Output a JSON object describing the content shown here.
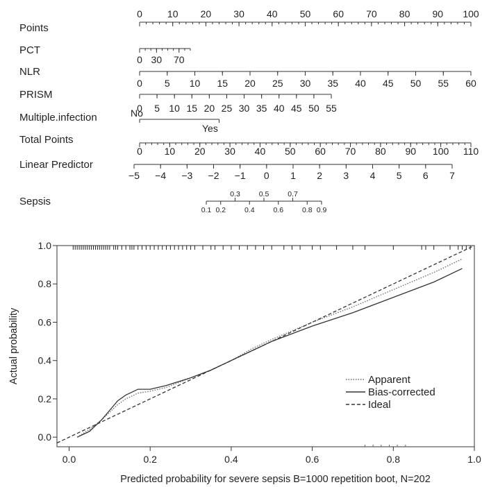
{
  "chart_data": [
    {
      "type": "nomogram",
      "rows": [
        {
          "name": "Points",
          "label": "Points",
          "min": 0,
          "max": 100,
          "labels": [
            "0",
            "10",
            "20",
            "30",
            "40",
            "50",
            "60",
            "70",
            "80",
            "90",
            "100"
          ],
          "label_values": [
            0,
            10,
            20,
            30,
            40,
            50,
            60,
            70,
            80,
            90,
            100
          ],
          "minor_step": 2
        },
        {
          "name": "PCT",
          "label": "PCT",
          "min": 0,
          "max": 90,
          "labels": [
            "0",
            "30",
            "70"
          ],
          "label_values": [
            0,
            30,
            70
          ],
          "minor_step": 10
        },
        {
          "name": "NLR",
          "label": "NLR",
          "min": 0,
          "max": 60,
          "labels": [
            "0",
            "5",
            "10",
            "15",
            "20",
            "25",
            "30",
            "35",
            "40",
            "45",
            "50",
            "55",
            "60"
          ],
          "label_values": [
            0,
            5,
            10,
            15,
            20,
            25,
            30,
            35,
            40,
            45,
            50,
            55,
            60
          ],
          "minor_step": 5
        },
        {
          "name": "PRISM",
          "label": "PRISM",
          "min": 0,
          "max": 55,
          "labels": [
            "0",
            "5",
            "10",
            "15",
            "20",
            "25",
            "30",
            "35",
            "40",
            "45",
            "50",
            "55"
          ],
          "label_values": [
            0,
            5,
            10,
            15,
            20,
            25,
            30,
            35,
            40,
            45,
            50,
            55
          ],
          "minor_step": 5
        },
        {
          "name": "Multiple.infection",
          "label": "Multiple.infection",
          "labels": [
            "No",
            "Yes"
          ],
          "points": [
            0,
            24
          ]
        },
        {
          "name": "Total Points",
          "label": "Total Points",
          "min": 0,
          "max": 110,
          "labels": [
            "0",
            "10",
            "20",
            "30",
            "40",
            "50",
            "60",
            "70",
            "80",
            "90",
            "100",
            "110"
          ],
          "label_values": [
            0,
            10,
            20,
            30,
            40,
            50,
            60,
            70,
            80,
            90,
            100,
            110
          ],
          "minor_step": 2
        },
        {
          "name": "Linear Predictor",
          "label": "Linear Predictor",
          "min": -5,
          "max": 7,
          "labels": [
            "−5",
            "−4",
            "−3",
            "−2",
            "−1",
            "0",
            "1",
            "2",
            "3",
            "4",
            "5",
            "6",
            "7"
          ],
          "label_values": [
            -5,
            -4,
            -3,
            -2,
            -1,
            0,
            1,
            2,
            3,
            4,
            5,
            6,
            7
          ],
          "minor_step": 1
        },
        {
          "name": "Sepsis",
          "label": "Sepsis",
          "labels": [
            "0.1",
            "0.2",
            "0.3",
            "0.4",
            "0.5",
            "0.6",
            "0.7",
            "0.8",
            "0.9"
          ],
          "label_values": [
            0.1,
            0.2,
            0.3,
            0.4,
            0.5,
            0.6,
            0.7,
            0.8,
            0.9
          ]
        }
      ]
    },
    {
      "type": "line",
      "xlabel": "Predicted probability for severe sepsis B=1000 repetition boot, N=202",
      "ylabel": "Actual probability",
      "xlim": [
        -0.03,
        1.0
      ],
      "ylim": [
        -0.05,
        1.0
      ],
      "xticks": [
        0.0,
        0.2,
        0.4,
        0.6,
        0.8,
        1.0
      ],
      "xtick_labels": [
        "0.0",
        "0.2",
        "0.4",
        "0.6",
        "0.8",
        "1.0"
      ],
      "yticks": [
        0.0,
        0.2,
        0.4,
        0.6,
        0.8,
        1.0
      ],
      "ytick_labels": [
        "0.0",
        "0.2",
        "0.4",
        "0.6",
        "0.8",
        "1.0"
      ],
      "legend_position": "right",
      "series": [
        {
          "name": "Apparent",
          "style": "dotted",
          "color": "#666666",
          "x": [
            0.02,
            0.05,
            0.08,
            0.1,
            0.12,
            0.14,
            0.17,
            0.2,
            0.24,
            0.3,
            0.35,
            0.4,
            0.45,
            0.5,
            0.6,
            0.7,
            0.8,
            0.9,
            0.97
          ],
          "y": [
            0.0,
            0.04,
            0.09,
            0.13,
            0.17,
            0.2,
            0.23,
            0.24,
            0.26,
            0.31,
            0.35,
            0.4,
            0.46,
            0.51,
            0.6,
            0.68,
            0.77,
            0.86,
            0.93
          ]
        },
        {
          "name": "Bias-corrected",
          "style": "solid",
          "color": "#333333",
          "x": [
            0.02,
            0.05,
            0.08,
            0.1,
            0.12,
            0.14,
            0.17,
            0.2,
            0.24,
            0.3,
            0.35,
            0.4,
            0.45,
            0.5,
            0.6,
            0.7,
            0.8,
            0.9,
            0.97
          ],
          "y": [
            0.0,
            0.03,
            0.09,
            0.14,
            0.19,
            0.22,
            0.25,
            0.25,
            0.27,
            0.31,
            0.35,
            0.4,
            0.45,
            0.5,
            0.58,
            0.65,
            0.73,
            0.81,
            0.88
          ]
        },
        {
          "name": "Ideal",
          "style": "dashed",
          "color": "#333333",
          "x": [
            -0.03,
            1.0
          ],
          "y": [
            -0.03,
            1.0
          ]
        }
      ],
      "rug_x": [
        0.01,
        0.015,
        0.02,
        0.025,
        0.03,
        0.035,
        0.04,
        0.045,
        0.05,
        0.055,
        0.06,
        0.065,
        0.07,
        0.075,
        0.08,
        0.085,
        0.09,
        0.095,
        0.1,
        0.11,
        0.115,
        0.12,
        0.13,
        0.14,
        0.15,
        0.155,
        0.16,
        0.17,
        0.18,
        0.19,
        0.2,
        0.21,
        0.22,
        0.23,
        0.24,
        0.25,
        0.26,
        0.27,
        0.28,
        0.29,
        0.3,
        0.31,
        0.33,
        0.35,
        0.36,
        0.38,
        0.4,
        0.42,
        0.44,
        0.46,
        0.48,
        0.5,
        0.53,
        0.55,
        0.57,
        0.6,
        0.62,
        0.66,
        0.7,
        0.73,
        0.8,
        0.87,
        0.88,
        0.9,
        0.94,
        0.96,
        0.97,
        0.98,
        0.99
      ],
      "rug_bottom_x": [
        0.73,
        0.75,
        0.77,
        0.79,
        0.81,
        0.83
      ]
    }
  ]
}
